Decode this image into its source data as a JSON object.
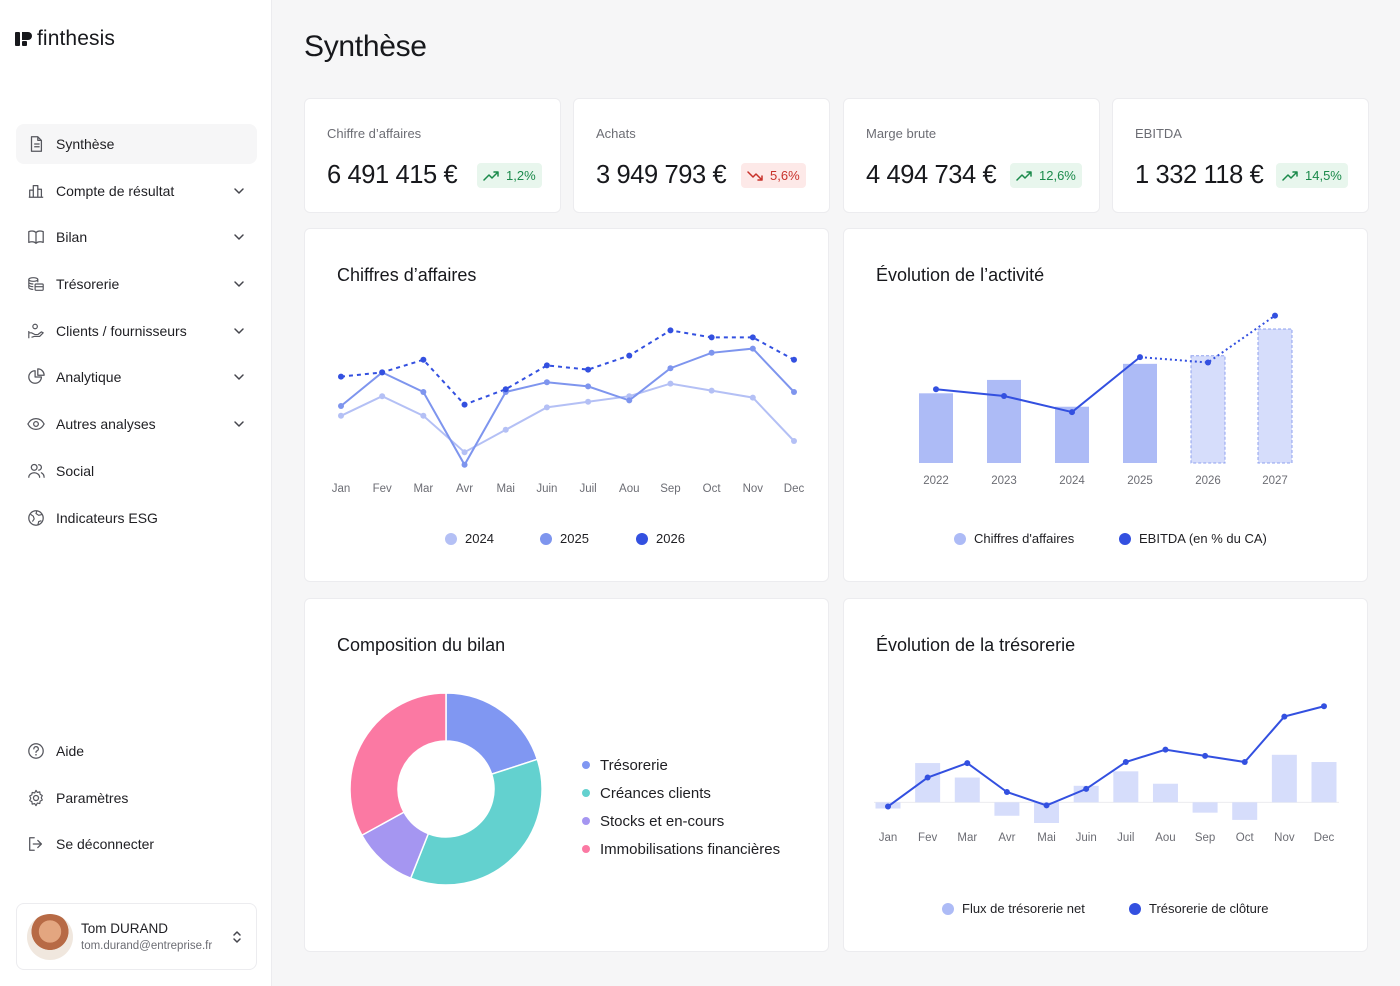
{
  "app": {
    "name": "finthesis"
  },
  "sidebar": {
    "items": [
      {
        "label": "Synthèse",
        "icon": "document-icon",
        "expandable": false,
        "active": true
      },
      {
        "label": "Compte de résultat",
        "icon": "bar-chart-icon",
        "expandable": true
      },
      {
        "label": "Bilan",
        "icon": "book-icon",
        "expandable": true
      },
      {
        "label": "Trésorerie",
        "icon": "coins-icon",
        "expandable": true
      },
      {
        "label": "Clients / fournisseurs",
        "icon": "handshake-icon",
        "expandable": true
      },
      {
        "label": "Analytique",
        "icon": "pie-chart-icon",
        "expandable": true
      },
      {
        "label": "Autres analyses",
        "icon": "eye-icon",
        "expandable": true
      },
      {
        "label": "Social",
        "icon": "users-icon",
        "expandable": false
      },
      {
        "label": "Indicateurs ESG",
        "icon": "globe-icon",
        "expandable": false
      }
    ],
    "bottom_items": [
      {
        "label": "Aide",
        "icon": "help-icon"
      },
      {
        "label": "Paramètres",
        "icon": "settings-icon"
      },
      {
        "label": "Se déconnecter",
        "icon": "logout-icon"
      }
    ],
    "user": {
      "name": "Tom DURAND",
      "email": "tom.durand@entreprise.fr"
    }
  },
  "page": {
    "title": "Synthèse"
  },
  "kpis": [
    {
      "label": "Chiffre d’affaires",
      "value": "6 491 415 €",
      "change": "1,2%",
      "trend": "up"
    },
    {
      "label": "Achats",
      "value": "3 949 793 €",
      "change": "5,6%",
      "trend": "down"
    },
    {
      "label": "Marge brute",
      "value": "4 494 734 €",
      "change": "12,6%",
      "trend": "up"
    },
    {
      "label": "EBITDA",
      "value": "1 332 118 €",
      "change": "14,5%",
      "trend": "up"
    }
  ],
  "colors": {
    "c2024": "#b4c0f5",
    "c2025": "#7e95ee",
    "c2026": "#3350e0",
    "bar": "#adbbf6",
    "bar_forecast": "#d6ddfb",
    "tresorerie": "#8097f2",
    "creances": "#63d1cf",
    "stocks": "#a596f1",
    "immobilisations": "#fb79a3"
  },
  "charts": {
    "ca": {
      "title": "Chiffres d’affaires",
      "legend": [
        "2024",
        "2025",
        "2026"
      ]
    },
    "activite": {
      "title": "Évolution de l’activité",
      "legend": [
        "Chiffres d'affaires",
        "EBITDA (en % du CA)"
      ]
    },
    "bilan": {
      "title": "Composition du bilan",
      "legend": [
        "Trésorerie",
        "Créances clients",
        "Stocks et en-cours",
        "Immobilisations financières"
      ]
    },
    "tresorerie": {
      "title": "Évolution de la trésorerie",
      "legend": [
        "Flux de trésorerie net",
        "Trésorerie de clôture"
      ]
    }
  },
  "chart_data": [
    {
      "type": "line",
      "title": "Chiffres d’affaires",
      "categories": [
        "Jan",
        "Fev",
        "Mar",
        "Avr",
        "Mai",
        "Juin",
        "Juil",
        "Aou",
        "Sep",
        "Oct",
        "Nov",
        "Dec"
      ],
      "ylim": [
        0,
        100
      ],
      "grid": false,
      "legend_position": "bottom",
      "series": [
        {
          "name": "2024",
          "values": [
            38,
            52,
            38,
            12,
            28,
            44,
            48,
            52,
            61,
            56,
            51,
            20
          ],
          "style": "solid"
        },
        {
          "name": "2025",
          "values": [
            45,
            69,
            55,
            3,
            55,
            62,
            59,
            49,
            72,
            83,
            86,
            55
          ],
          "style": "solid"
        },
        {
          "name": "2026",
          "values": [
            66,
            69,
            78,
            46,
            57,
            74,
            71,
            81,
            99,
            94,
            94,
            78
          ],
          "style": "dashed"
        }
      ]
    },
    {
      "type": "bar",
      "title": "Évolution de l’activité",
      "categories": [
        "2022",
        "2023",
        "2024",
        "2025",
        "2026",
        "2027"
      ],
      "ylim": [
        0,
        100
      ],
      "grid": false,
      "legend_position": "bottom",
      "series": [
        {
          "name": "Chiffres d'affaires",
          "values": [
            52,
            62,
            42,
            74,
            80,
            100
          ],
          "forecast_from": "2026"
        },
        {
          "name": "EBITDA (en % du CA)",
          "values": [
            55,
            50,
            38,
            79,
            75,
            110
          ],
          "type": "line",
          "forecast_from": "2025"
        }
      ]
    },
    {
      "type": "pie",
      "title": "Composition du bilan",
      "donut": true,
      "legend_position": "right",
      "categories": [
        "Trésorerie",
        "Créances clients",
        "Stocks et en-cours",
        "Immobilisations financières"
      ],
      "values": [
        20,
        36,
        11,
        33
      ]
    },
    {
      "type": "bar",
      "title": "Évolution de la trésorerie",
      "categories": [
        "Jan",
        "Fev",
        "Mar",
        "Avr",
        "Mai",
        "Juin",
        "Juil",
        "Aou",
        "Sep",
        "Oct",
        "Nov",
        "Dec"
      ],
      "ylim": [
        -20,
        100
      ],
      "grid": false,
      "legend_position": "bottom",
      "series": [
        {
          "name": "Flux de trésorerie net",
          "values": [
            -6,
            38,
            24,
            -13,
            -20,
            16,
            30,
            18,
            -10,
            -17,
            46,
            39
          ]
        },
        {
          "name": "Trésorerie de clôture",
          "values": [
            -4,
            24,
            38,
            10,
            -3,
            13,
            39,
            51,
            45,
            39,
            83,
            93
          ],
          "type": "line"
        }
      ]
    }
  ]
}
